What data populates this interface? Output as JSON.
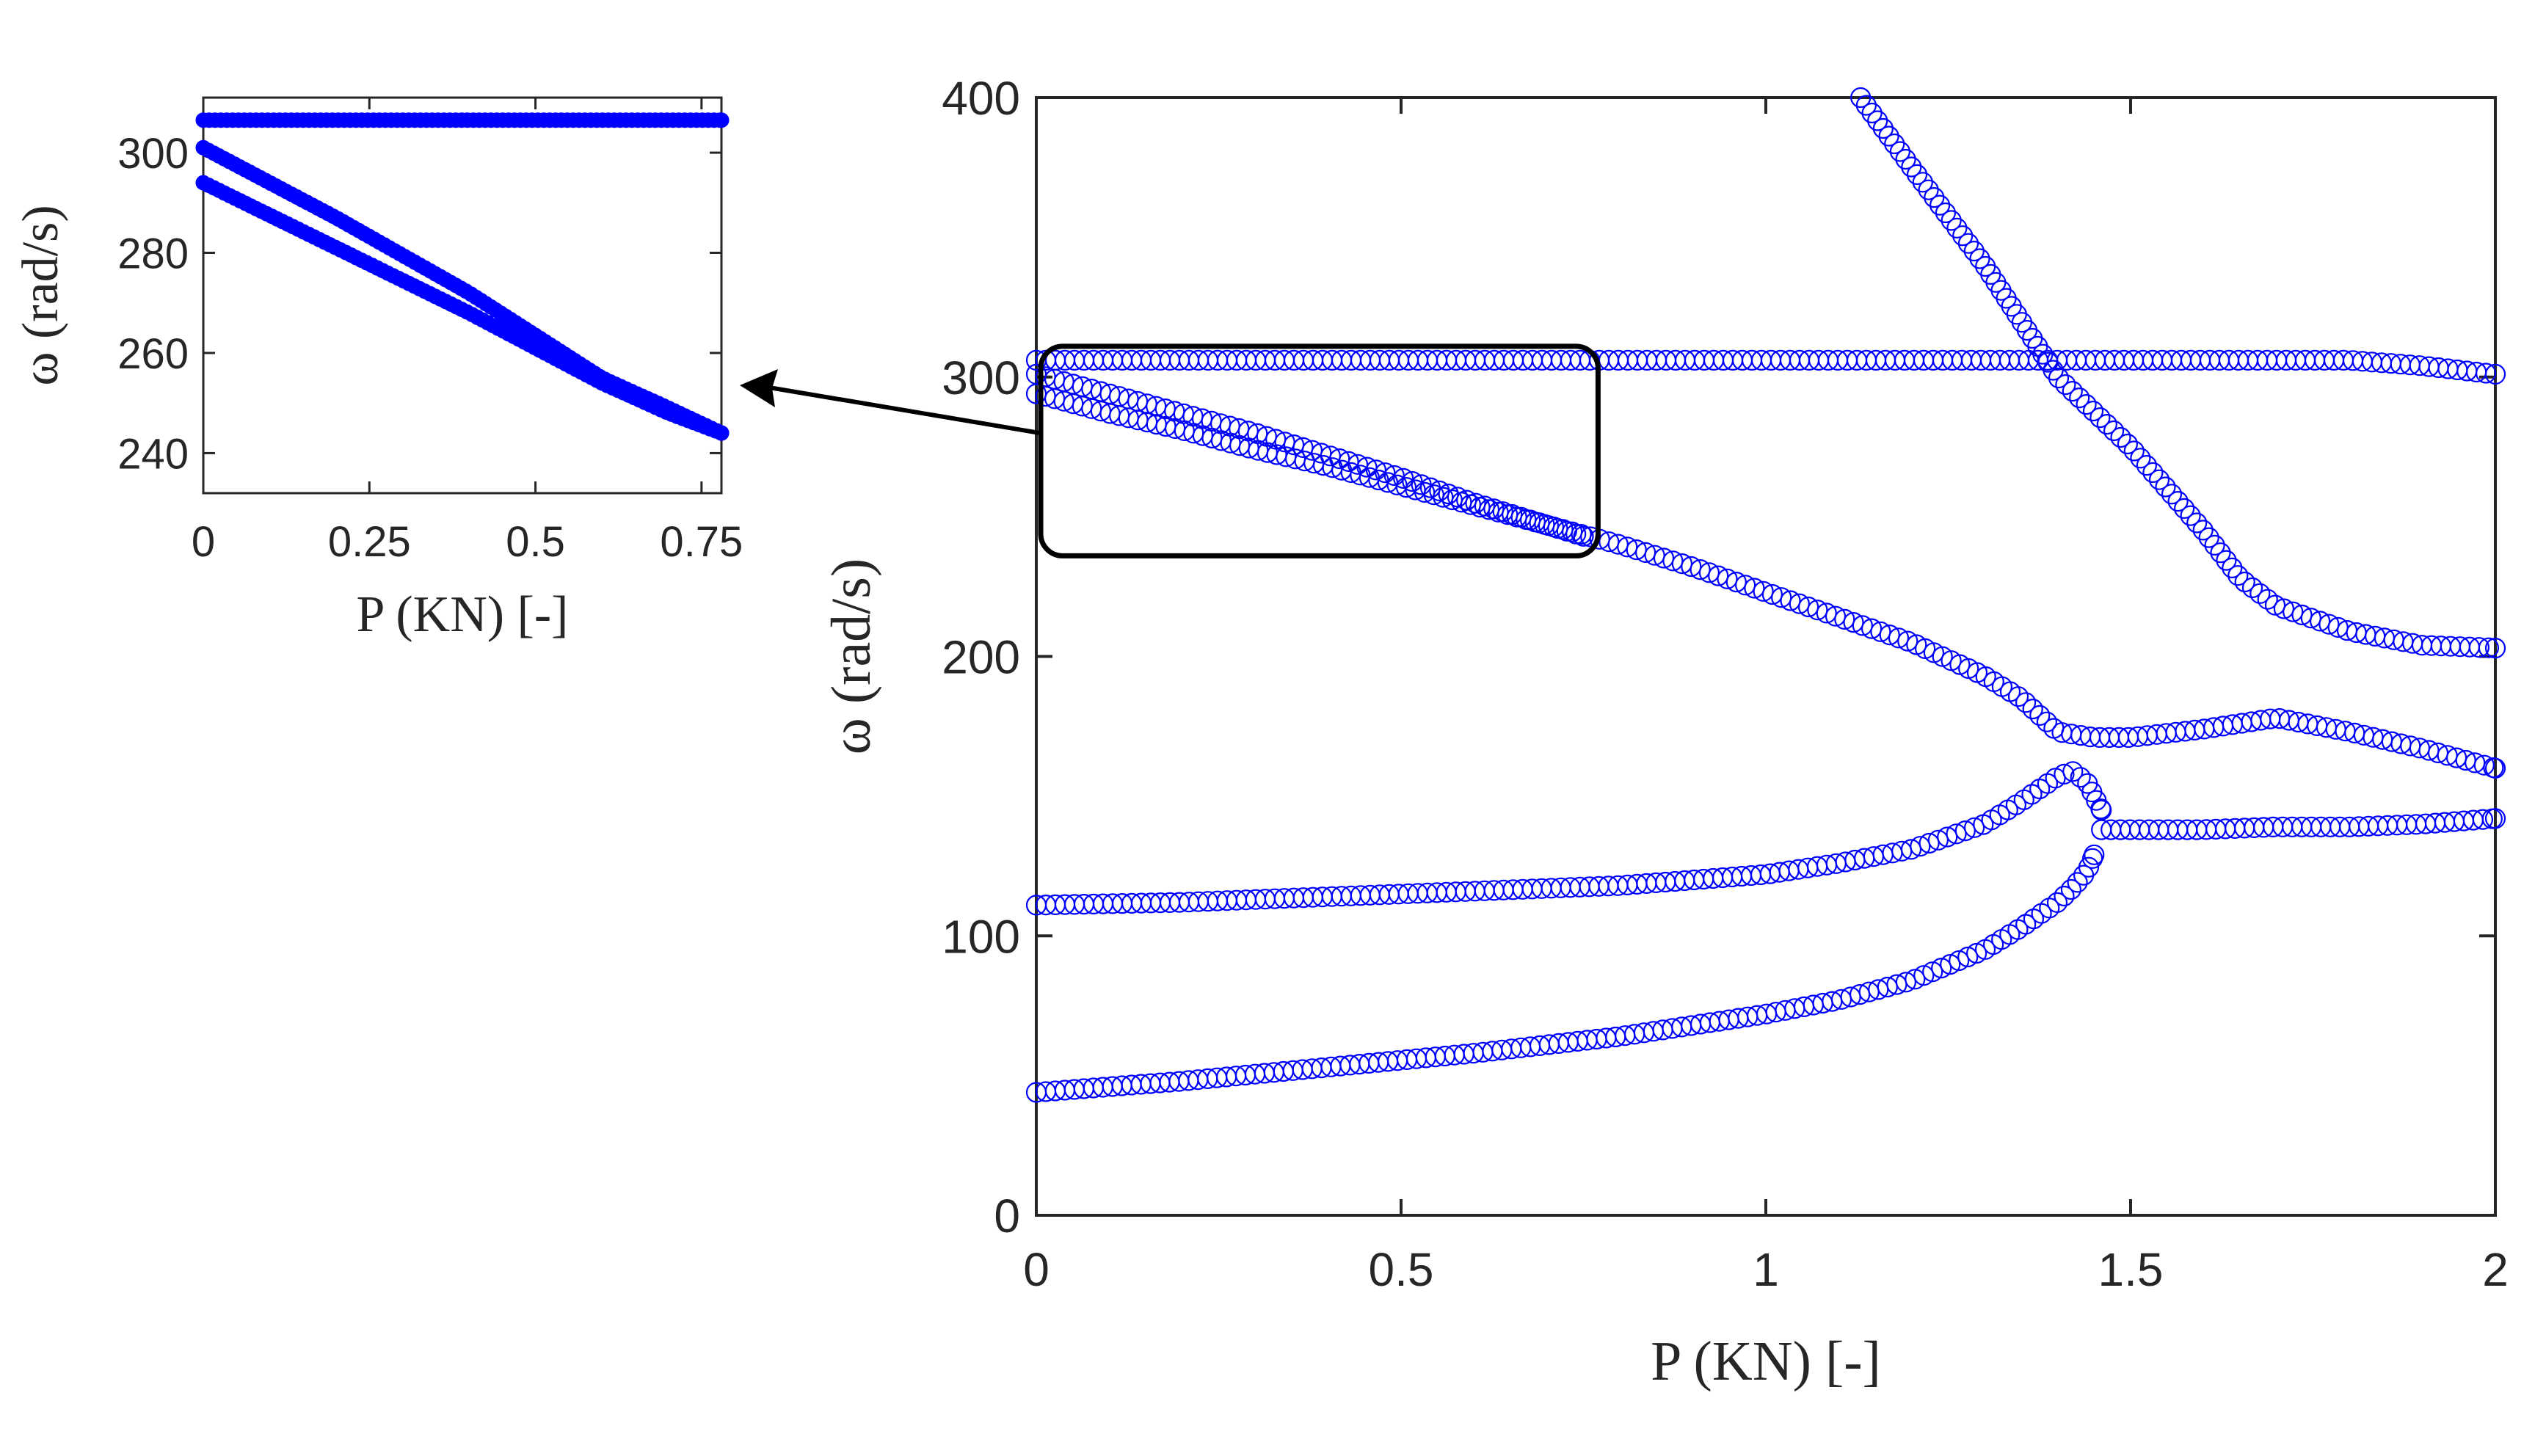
{
  "colors": {
    "series": "#0000ff",
    "axes": "#262626",
    "background": "#ffffff",
    "zoom_box": "#000000",
    "arrow": "#000000"
  },
  "chart_data": [
    {
      "id": "main",
      "type": "scatter",
      "marker": "open-circle",
      "xlabel": "P (KN) [-]",
      "ylabel": "ω (rad/s)",
      "xlim": [
        0,
        2
      ],
      "ylim": [
        0,
        400
      ],
      "xticks": [
        "0",
        "0.5",
        "1",
        "1.5",
        "2"
      ],
      "yticks": [
        "0",
        "100",
        "200",
        "300",
        "400"
      ],
      "grid": false,
      "series": [
        {
          "x": [
            0,
            0.2,
            0.4,
            0.6,
            0.8,
            1.0,
            1.1,
            1.2,
            1.3,
            1.35,
            1.4,
            1.42,
            1.44,
            1.45
          ],
          "y": [
            44,
            48,
            53,
            58,
            64,
            72,
            77,
            84,
            95,
            103,
            112,
            117,
            123,
            129
          ]
        },
        {
          "x": [
            0,
            0.2,
            0.4,
            0.6,
            0.8,
            1.0,
            1.1,
            1.2,
            1.3,
            1.35,
            1.4,
            1.42,
            1.44,
            1.45,
            1.46
          ],
          "y": [
            111,
            112,
            114,
            116,
            118,
            122,
            126,
            131,
            140,
            148,
            157,
            159,
            155,
            150,
            145
          ]
        },
        {
          "x": [
            1.46,
            1.5,
            1.6,
            1.7,
            1.8,
            1.9,
            2.0
          ],
          "y": [
            138,
            138,
            138,
            139,
            139,
            140,
            142
          ]
        },
        {
          "x": [
            0,
            0.1,
            0.2,
            0.3,
            0.4,
            0.5,
            0.6,
            0.7,
            0.8,
            0.9,
            1.0,
            1.1,
            1.2,
            1.3,
            1.35,
            1.4,
            1.45,
            1.5,
            1.6,
            1.7,
            1.8,
            1.9,
            2.0
          ],
          "y": [
            294,
            287,
            281,
            274,
            268,
            261,
            254,
            247,
            240,
            232,
            223,
            214,
            205,
            193,
            185,
            173,
            171,
            171,
            174,
            178,
            173,
            167,
            160
          ]
        },
        {
          "x": [
            0,
            0.1,
            0.2,
            0.3,
            0.4,
            0.5,
            0.6,
            0.7,
            0.75
          ],
          "y": [
            301,
            294,
            287,
            280,
            272,
            264,
            255,
            247,
            243
          ]
        },
        {
          "x": [
            0,
            0.5,
            1.0,
            1.5,
            1.8,
            1.9,
            2.0
          ],
          "y": [
            306,
            306,
            306,
            306,
            306,
            304,
            301
          ]
        },
        {
          "x": [
            1.13,
            1.2,
            1.3,
            1.4,
            1.5,
            1.6,
            1.65,
            1.7,
            1.8,
            1.9,
            2.0
          ],
          "y": [
            400,
            375,
            340,
            300,
            275,
            245,
            228,
            218,
            209,
            204,
            203
          ]
        }
      ],
      "annotations": [
        {
          "type": "rounded-rect",
          "x": [
            0,
            0.77
          ],
          "y": [
            236,
            311
          ]
        },
        {
          "type": "arrow",
          "from": [
            0,
            280
          ],
          "to": "inset"
        }
      ]
    },
    {
      "id": "inset",
      "type": "scatter",
      "marker": "filled-circle",
      "xlabel": "P (KN) [-]",
      "ylabel": "ω (rad/s)",
      "xlim": [
        0,
        0.78
      ],
      "ylim": [
        232,
        311
      ],
      "xticks": [
        "0",
        "0.25",
        "0.5",
        "0.75"
      ],
      "yticks": [
        "240",
        "260",
        "280",
        "300"
      ],
      "grid": false,
      "series": [
        {
          "x": [
            0,
            0.78
          ],
          "y": [
            306.5,
            306.5
          ]
        },
        {
          "x": [
            0,
            0.2,
            0.4,
            0.6,
            0.7,
            0.78
          ],
          "y": [
            301,
            287,
            272,
            255,
            249,
            244
          ]
        },
        {
          "x": [
            0,
            0.2,
            0.4,
            0.6,
            0.7,
            0.78
          ],
          "y": [
            294,
            281,
            268,
            254,
            248,
            244
          ]
        }
      ]
    }
  ]
}
